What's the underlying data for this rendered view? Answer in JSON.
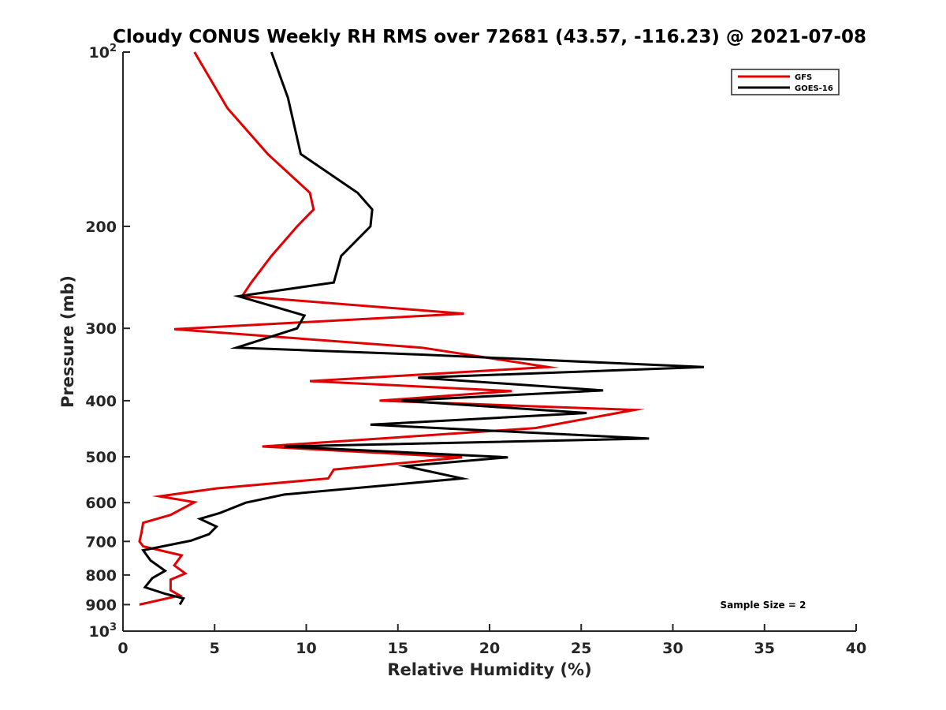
{
  "chart_data": {
    "type": "line",
    "title": "Cloudy CONUS Weekly RH RMS over 72681 (43.57, -116.23) @ 2021-07-08",
    "xlabel": "Relative Humidity (%)",
    "ylabel": "Pressure (mb)",
    "xlim": [
      0,
      40
    ],
    "ylim": [
      100,
      1000
    ],
    "yscale": "log",
    "y_reversed": true,
    "grid": false,
    "x_ticks": [
      "0",
      "5",
      "10",
      "15",
      "20",
      "25",
      "30",
      "35",
      "40"
    ],
    "y_ticks": [
      {
        "value": 100,
        "base": "10",
        "exp": "2"
      },
      {
        "value": 200,
        "base": "200",
        "exp": ""
      },
      {
        "value": 300,
        "base": "300",
        "exp": ""
      },
      {
        "value": 400,
        "base": "400",
        "exp": ""
      },
      {
        "value": 500,
        "base": "500",
        "exp": ""
      },
      {
        "value": 600,
        "base": "600",
        "exp": ""
      },
      {
        "value": 700,
        "base": "700",
        "exp": ""
      },
      {
        "value": 800,
        "base": "800",
        "exp": ""
      },
      {
        "value": 900,
        "base": "900",
        "exp": ""
      },
      {
        "value": 1000,
        "base": "10",
        "exp": "3"
      }
    ],
    "legend_position": "top-right",
    "series": [
      {
        "name": "GFS",
        "color": "#e00000",
        "points": [
          [
            3.9,
            100
          ],
          [
            5.7,
            125
          ],
          [
            7.9,
            150
          ],
          [
            10.2,
            175
          ],
          [
            10.4,
            187
          ],
          [
            9.5,
            200
          ],
          [
            8.1,
            225
          ],
          [
            7.0,
            250
          ],
          [
            6.5,
            264
          ],
          [
            18.6,
            283
          ],
          [
            2.8,
            301
          ],
          [
            16.3,
            324
          ],
          [
            23.2,
            350
          ],
          [
            10.2,
            370
          ],
          [
            21.2,
            385
          ],
          [
            14.0,
            400
          ],
          [
            27.9,
            415
          ],
          [
            22.5,
            446
          ],
          [
            7.6,
            480
          ],
          [
            18.5,
            501
          ],
          [
            11.5,
            526
          ],
          [
            11.2,
            545
          ],
          [
            5.1,
            567
          ],
          [
            2.0,
            585
          ],
          [
            3.9,
            599
          ],
          [
            2.6,
            630
          ],
          [
            1.1,
            650
          ],
          [
            1.0,
            678
          ],
          [
            0.9,
            700
          ],
          [
            1.1,
            714
          ],
          [
            3.2,
            740
          ],
          [
            2.8,
            770
          ],
          [
            3.4,
            795
          ],
          [
            2.6,
            815
          ],
          [
            2.6,
            850
          ],
          [
            3.1,
            868
          ],
          [
            0.9,
            900
          ]
        ]
      },
      {
        "name": "GOES-16",
        "color": "#000000",
        "points": [
          [
            8.1,
            100
          ],
          [
            9.0,
            120
          ],
          [
            9.7,
            150
          ],
          [
            12.8,
            175
          ],
          [
            13.6,
            187
          ],
          [
            13.5,
            200
          ],
          [
            11.9,
            225
          ],
          [
            11.5,
            250
          ],
          [
            6.3,
            264
          ],
          [
            9.9,
            285
          ],
          [
            9.5,
            300
          ],
          [
            6.2,
            324
          ],
          [
            16.3,
            333
          ],
          [
            31.7,
            350
          ],
          [
            16.1,
            365
          ],
          [
            26.2,
            384
          ],
          [
            15.2,
            400
          ],
          [
            25.3,
            420
          ],
          [
            13.5,
            440
          ],
          [
            28.7,
            465
          ],
          [
            8.8,
            480
          ],
          [
            21.0,
            501
          ],
          [
            15.4,
            519
          ],
          [
            18.5,
            545
          ],
          [
            8.8,
            581
          ],
          [
            6.7,
            600
          ],
          [
            5.3,
            625
          ],
          [
            4.2,
            640
          ],
          [
            5.1,
            660
          ],
          [
            4.7,
            680
          ],
          [
            3.7,
            698
          ],
          [
            1.1,
            725
          ],
          [
            1.5,
            755
          ],
          [
            2.3,
            787
          ],
          [
            1.6,
            810
          ],
          [
            1.2,
            840
          ],
          [
            2.3,
            862
          ],
          [
            3.3,
            878
          ],
          [
            3.1,
            900
          ]
        ]
      }
    ],
    "annotations": [
      {
        "text": "Sample Size = 2"
      }
    ]
  }
}
